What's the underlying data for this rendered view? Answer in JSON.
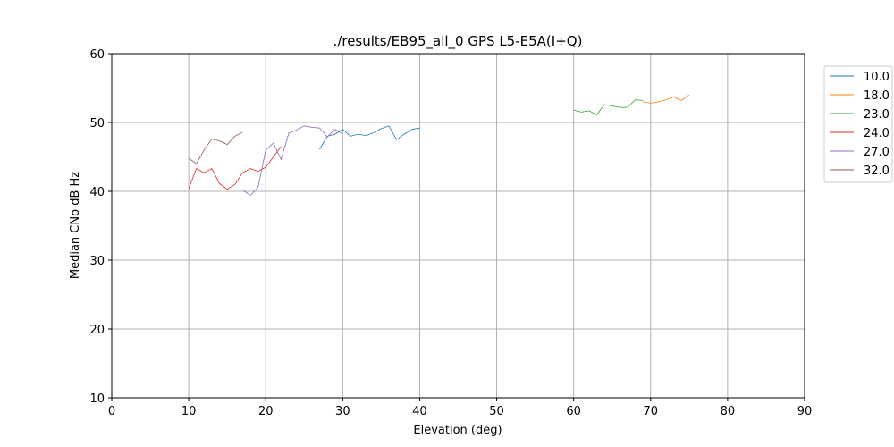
{
  "chart_data": {
    "type": "line",
    "title": "./results/EB95_all_0 GPS L5-E5A(I+Q)",
    "xlabel": "Elevation (deg)",
    "ylabel": "Median CNo dB Hz",
    "xlim": [
      0,
      90
    ],
    "ylim": [
      10,
      60
    ],
    "xticks": [
      "0",
      "10",
      "20",
      "30",
      "40",
      "50",
      "60",
      "70",
      "80",
      "90"
    ],
    "yticks": [
      "10",
      "20",
      "30",
      "40",
      "50",
      "60"
    ],
    "grid": true,
    "legend_position": "outside-right-top",
    "series": [
      {
        "name": "10.0",
        "color": "#1f77b4",
        "points": [
          [
            27,
            46.1
          ],
          [
            28,
            48.0
          ],
          [
            29,
            48.3
          ],
          [
            30,
            49.0
          ],
          [
            31,
            48.0
          ],
          [
            32,
            48.3
          ],
          [
            33,
            48.1
          ],
          [
            34,
            48.5
          ],
          [
            35,
            49.1
          ],
          [
            36,
            49.5
          ],
          [
            37,
            47.5
          ],
          [
            38,
            48.3
          ],
          [
            39,
            49.0
          ],
          [
            40,
            49.2
          ]
        ]
      },
      {
        "name": "18.0",
        "color": "#ff7f0e",
        "points": [
          [
            69,
            53.0
          ],
          [
            70,
            52.8
          ],
          [
            71,
            53.0
          ],
          [
            72,
            53.3
          ],
          [
            73,
            53.7
          ],
          [
            74,
            53.2
          ],
          [
            75,
            54.0
          ]
        ]
      },
      {
        "name": "23.0",
        "color": "#2ca02c",
        "points": [
          [
            60,
            51.8
          ],
          [
            61,
            51.5
          ],
          [
            62,
            51.7
          ],
          [
            63,
            51.1
          ],
          [
            64,
            52.6
          ],
          [
            65,
            52.4
          ],
          [
            66,
            52.2
          ],
          [
            67,
            52.2
          ],
          [
            68,
            53.3
          ],
          [
            69,
            53.2
          ]
        ]
      },
      {
        "name": "24.0",
        "color": "#d62728",
        "points": [
          [
            10,
            40.4
          ],
          [
            11,
            43.3
          ],
          [
            12,
            42.7
          ],
          [
            13,
            43.3
          ],
          [
            14,
            41.1
          ],
          [
            15,
            40.3
          ],
          [
            16,
            41.0
          ],
          [
            17,
            42.7
          ],
          [
            18,
            43.3
          ],
          [
            19,
            42.9
          ],
          [
            20,
            43.5
          ],
          [
            21,
            45.0
          ],
          [
            22,
            46.5
          ]
        ]
      },
      {
        "name": "27.0",
        "color": "#9467bd",
        "points": [
          [
            17,
            40.2
          ],
          [
            18,
            39.4
          ],
          [
            19,
            40.6
          ],
          [
            20,
            46.0
          ],
          [
            21,
            47.0
          ],
          [
            22,
            44.6
          ],
          [
            23,
            48.5
          ],
          [
            24,
            48.9
          ],
          [
            25,
            49.5
          ],
          [
            26,
            49.3
          ],
          [
            27,
            49.2
          ],
          [
            28,
            47.9
          ],
          [
            29,
            49.0
          ],
          [
            30,
            48.3
          ]
        ]
      },
      {
        "name": "32.0",
        "color": "#8c564b",
        "points": [
          [
            10,
            44.8
          ],
          [
            11,
            44.0
          ],
          [
            12,
            46.0
          ],
          [
            13,
            47.6
          ],
          [
            14,
            47.3
          ],
          [
            15,
            46.8
          ],
          [
            16,
            48.0
          ],
          [
            17,
            48.6
          ]
        ]
      }
    ]
  }
}
